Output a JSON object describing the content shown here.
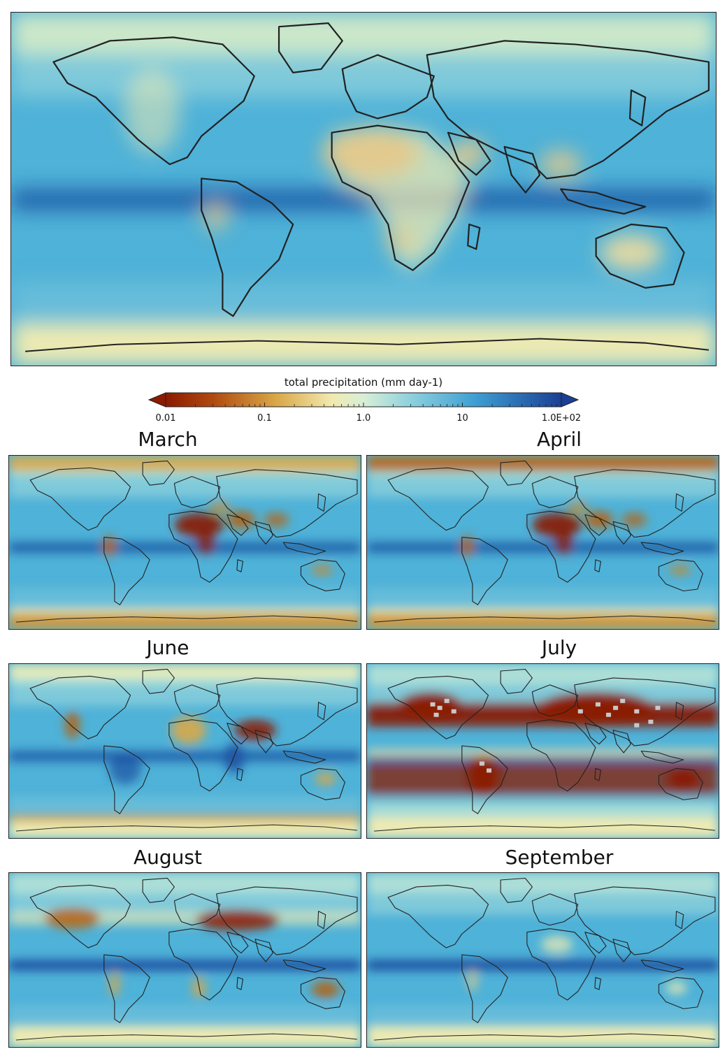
{
  "figure": {
    "panels": [
      {
        "id": "annual",
        "title": ""
      },
      {
        "id": "march",
        "title": "March"
      },
      {
        "id": "april",
        "title": "April"
      },
      {
        "id": "june",
        "title": "June"
      },
      {
        "id": "july",
        "title": "July"
      },
      {
        "id": "august",
        "title": "August"
      },
      {
        "id": "september",
        "title": "September"
      }
    ]
  },
  "colorbar": {
    "title": "total precipitation (mm day-1)",
    "ticks": [
      "0.01",
      "0.1",
      "1.0",
      "10",
      "1.0E+02"
    ],
    "colors": {
      "dry": "#8b1a00",
      "mid_dry": "#c88a2a",
      "neutral": "#f5edb0",
      "light_wet": "#b7e3d6",
      "wet": "#4fb2d8",
      "very_wet": "#1c4fa0",
      "missing": "#c8c8c8",
      "coast": "#222222"
    }
  }
}
